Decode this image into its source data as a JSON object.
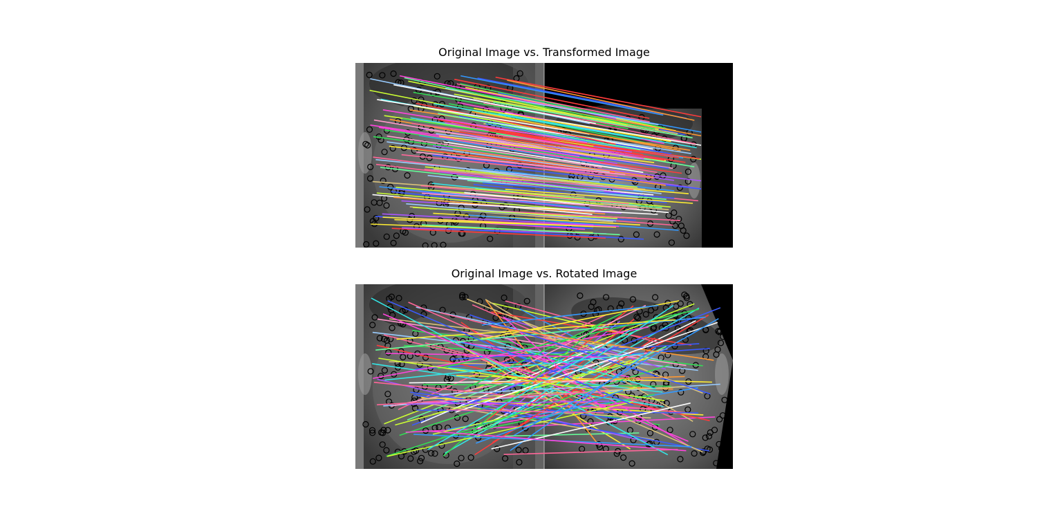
{
  "figure": {
    "panels": [
      {
        "title": "Original Image vs. Transformed Image",
        "right_image": "scaled-face",
        "keypoint_color": "#000000",
        "match_mode": "consistent"
      },
      {
        "title": "Original Image vs. Rotated Image",
        "right_image": "rotated-face",
        "keypoint_color": "#000000",
        "match_mode": "crossing"
      }
    ],
    "line_palette": [
      "#ff3b3b",
      "#33dd55",
      "#3b5bff",
      "#ffee33",
      "#ff44dd",
      "#33e6e6",
      "#ff9933",
      "#aa55ff",
      "#ffffff",
      "#66ff99",
      "#ff6699",
      "#99ccff",
      "#ccff33",
      "#ff99cc",
      "#3399ff",
      "#d9c27a"
    ]
  }
}
